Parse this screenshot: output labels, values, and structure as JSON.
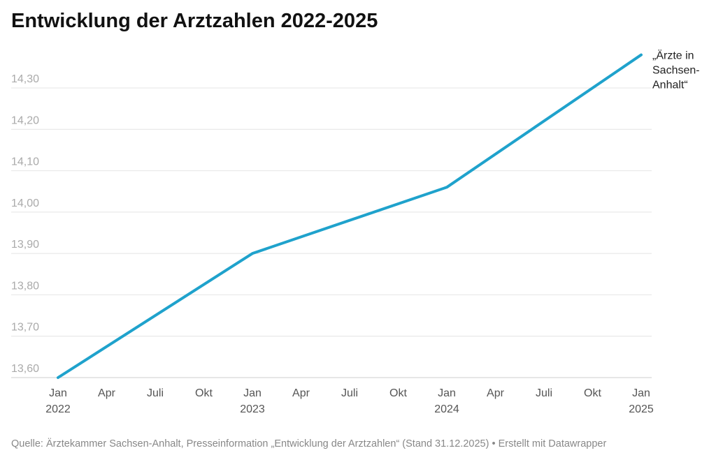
{
  "chart_data": {
    "type": "line",
    "title": "Entwicklung der Arztzahlen 2022-2025",
    "xlabel": "",
    "ylabel": "",
    "ylim": [
      13.6,
      14.3
    ],
    "yticks": [
      "13,60",
      "13,70",
      "13,80",
      "13,90",
      "14,00",
      "14,10",
      "14,20",
      "14,30"
    ],
    "ytick_values": [
      13.6,
      13.7,
      13.8,
      13.9,
      14.0,
      14.1,
      14.2,
      14.3
    ],
    "xticks": [
      {
        "q": 0,
        "label": "Jan",
        "year": "2022"
      },
      {
        "q": 1,
        "label": "Apr"
      },
      {
        "q": 2,
        "label": "Juli"
      },
      {
        "q": 3,
        "label": "Okt"
      },
      {
        "q": 4,
        "label": "Jan",
        "year": "2023"
      },
      {
        "q": 5,
        "label": "Apr"
      },
      {
        "q": 6,
        "label": "Juli"
      },
      {
        "q": 7,
        "label": "Okt"
      },
      {
        "q": 8,
        "label": "Jan",
        "year": "2024"
      },
      {
        "q": 9,
        "label": "Apr"
      },
      {
        "q": 10,
        "label": "Juli"
      },
      {
        "q": 11,
        "label": "Okt"
      },
      {
        "q": 12,
        "label": "Jan",
        "year": "2025"
      }
    ],
    "grid": true,
    "series": [
      {
        "name": "„Ärzte in Sachsen-Anhalt“",
        "label_lines": [
          "„Ärzte in",
          "Sachsen-",
          "Anhalt“"
        ],
        "color": "#1fa2cc",
        "x": [
          "Jan 2022",
          "Jan 2023",
          "Jan 2024",
          "Jan 2025"
        ],
        "q": [
          0,
          4,
          8,
          12
        ],
        "values": [
          13.6,
          13.9,
          14.06,
          14.38
        ]
      }
    ]
  },
  "footer": "Quelle: Ärztekammer Sachsen-Anhalt, Presseinformation „Entwicklung der Arztzahlen“ (Stand 31.12.2025)  • Erstellt mit Datawrapper"
}
